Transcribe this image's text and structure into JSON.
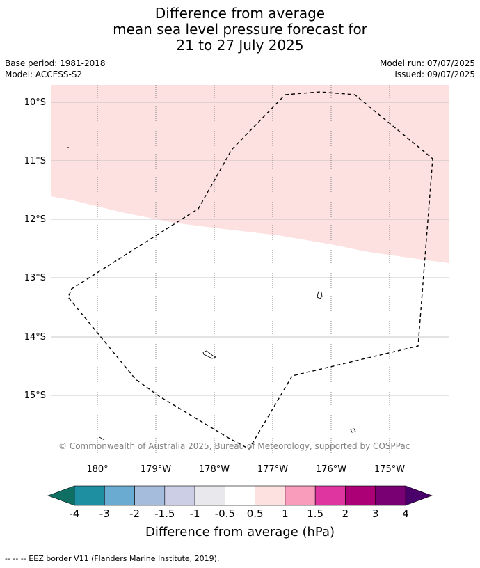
{
  "title": {
    "line1": "Difference from average",
    "line2": "mean sea level pressure forecast for",
    "line3": "21 to 27 July 2025"
  },
  "meta": {
    "base_period": "Base period: 1981-2018",
    "model": "Model: ACCESS-S2",
    "model_run": "Model run: 07/07/2025",
    "issued": "Issued: 09/07/2025"
  },
  "map": {
    "lat_labels": [
      "10°S",
      "11°S",
      "12°S",
      "13°S",
      "14°S",
      "15°S"
    ],
    "lon_labels": [
      "180°",
      "179°W",
      "178°W",
      "177°W",
      "176°W",
      "175°W"
    ],
    "copyright": "© Commonwealth of Australia 2025, Bureau of Meteorology, supported by COSPPac",
    "anomaly_fill_color": "#fde0e0",
    "anomaly_band": "0.5 to 1 hPa (north-east of map)"
  },
  "colorbar": {
    "title": "Difference from average (hPa)",
    "ticks": [
      "-4",
      "-3",
      "-2",
      "-1.5",
      "-1",
      "-0.5",
      "0.5",
      "1",
      "1.5",
      "2",
      "3",
      "4"
    ],
    "colors": [
      "#0e6f62",
      "#1e8fa0",
      "#6aabd2",
      "#a6bcdc",
      "#cccee6",
      "#e9e9ed",
      "#ffffff",
      "#fde0e0",
      "#f99bbb",
      "#de35a0",
      "#ac0077",
      "#780073",
      "#4a006b"
    ]
  },
  "footer": {
    "legend": "--  --  -- EEZ border V11 (Flanders Marine Institute, 2019)."
  }
}
